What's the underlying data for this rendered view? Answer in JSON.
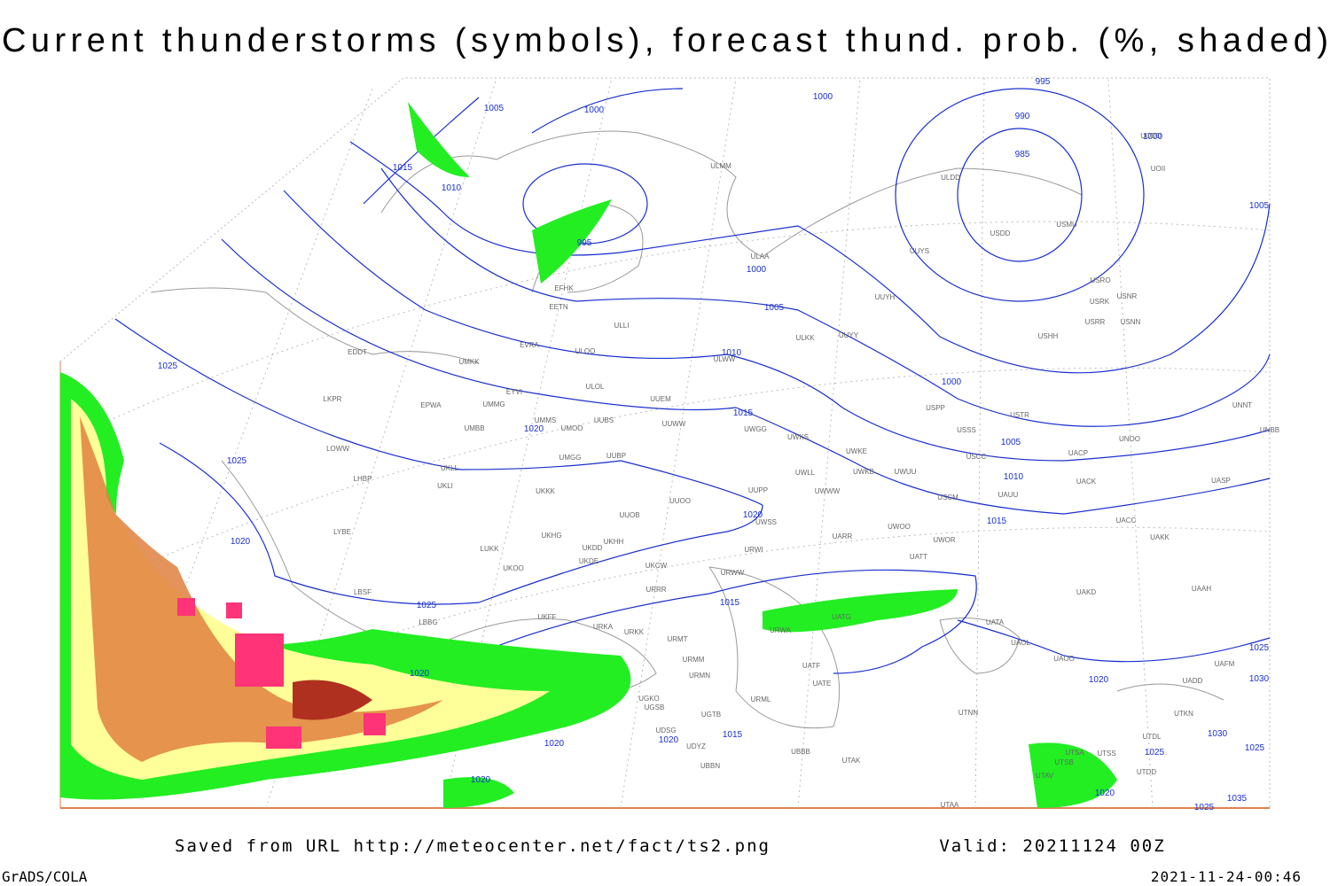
{
  "title": "Current thunderstorms (symbols), forecast thund. prob. (%, shaded)",
  "map": {
    "isobar_labels": [
      "1005",
      "1000",
      "1000",
      "995",
      "990",
      "985",
      "1015",
      "1010",
      "995",
      "1000",
      "1005",
      "1010",
      "1015",
      "1020",
      "1025",
      "1025",
      "1020",
      "1025",
      "1020",
      "1015",
      "1015",
      "1010",
      "1005",
      "1000",
      "1005",
      "1000",
      "1020",
      "1020",
      "1015",
      "1020",
      "1020",
      "1020",
      "1025",
      "1030",
      "1030",
      "1025",
      "1025",
      "1020",
      "1035",
      "1025"
    ],
    "stations": [
      "ULDD",
      "UODD",
      "UOII",
      "USDD",
      "USMU",
      "UUYS",
      "ULAA",
      "ULMM",
      "EFHK",
      "EETN",
      "ULLI",
      "EVRA",
      "ULOO",
      "EDDT",
      "UMKK",
      "ULKK",
      "UUYY",
      "ULWW",
      "UUYH",
      "USRO",
      "USNR",
      "USRK",
      "USRR",
      "USNN",
      "USHH",
      "EYVI",
      "LKPR",
      "EPWA",
      "UMMG",
      "ULOL",
      "UUEM",
      "USPP",
      "USTR",
      "UNNT",
      "UNBB",
      "UMMS",
      "UMOO",
      "UUBS",
      "UUWW",
      "UWGG",
      "UWKS",
      "USSS",
      "UNOO",
      "UMBB",
      "LOWW",
      "UUBP",
      "UMGG",
      "UWKE",
      "USCC",
      "UACP",
      "UKLL",
      "LHBP",
      "UKLI",
      "UWLL",
      "UWKB",
      "UWUU",
      "UACK",
      "UASP",
      "UKKK",
      "UUPP",
      "UWWW",
      "USCM",
      "UAUU",
      "UUOO",
      "LYBE",
      "UUOB",
      "UWSS",
      "UACC",
      "UKHH",
      "UKHG",
      "UKDD",
      "UARR",
      "UWOO",
      "UWOR",
      "UAKK",
      "LUKK",
      "UKOO",
      "UKDE",
      "URWI",
      "UKCW",
      "URWW",
      "UATT",
      "LBSF",
      "URRR",
      "UAKD",
      "UAAH",
      "UKFF",
      "LBBG",
      "URKA",
      "URKK",
      "URWA",
      "UATG",
      "UATA",
      "URMT",
      "UAOL",
      "UAOO",
      "UAFM",
      "URMM",
      "UATF",
      "UADD",
      "URMN",
      "UATE",
      "URML",
      "UGKO",
      "UTKN",
      "UGSB",
      "UGTB",
      "UTNN",
      "UDSG",
      "UTDL",
      "UBBB",
      "UDYZ",
      "UTAK",
      "UTSA",
      "UTSS",
      "UTSB",
      "UBBN",
      "UTDD",
      "UTAV",
      "UTAA"
    ]
  },
  "footer": {
    "saved_from": "Saved from URL http://meteocenter.net/fact/ts2.png",
    "valid": "Valid: 20211124 00Z",
    "software": "GrADS/COLA",
    "timestamp": "2021-11-24-00:46"
  }
}
